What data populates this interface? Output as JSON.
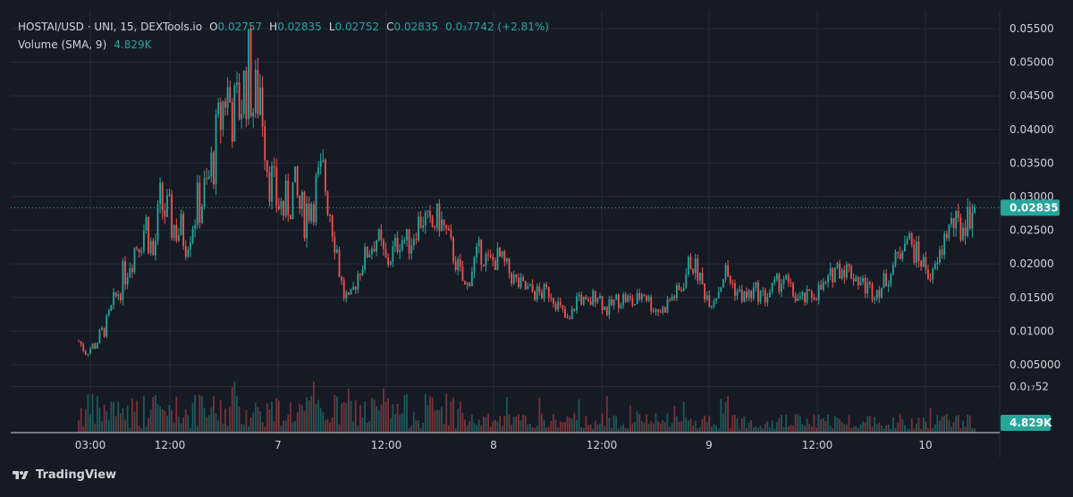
{
  "legend": {
    "symbol": "HOSTAI/USD · UNI, 15, DEXTools.io",
    "open_label": "O",
    "open": "0.02757",
    "high_label": "H",
    "high": "0.02835",
    "low_label": "L",
    "low": "0.02752",
    "close_label": "C",
    "close": "0.02835",
    "change": "0.0₃7742 (+2.81%)",
    "volume_label": "Volume (SMA, 9)",
    "volume_value": "4.829K"
  },
  "footer": {
    "brand": "TradingView"
  },
  "colors": {
    "background": "#161a25",
    "grid": "#262b38",
    "up": "#26a69a",
    "down": "#ef5350",
    "text": "#d1d4dc",
    "price_line": "#26a69a"
  },
  "chart_data": {
    "type": "candlestick",
    "interval": "15",
    "y_axis_labels": [
      "0.05500",
      "0.05000",
      "0.04500",
      "0.04000",
      "0.03500",
      "0.03000",
      "0.02500",
      "0.02000",
      "0.01500",
      "0.01000",
      "0.005000",
      "0.0₁₇52"
    ],
    "y_axis_values": [
      0.055,
      0.05,
      0.045,
      0.04,
      0.035,
      0.03,
      0.025,
      0.02,
      0.015,
      0.01,
      0.005,
      0.00175
    ],
    "x_axis_labels": [
      "03:00",
      "12:00",
      "7",
      "12:00",
      "8",
      "12:00",
      "9",
      "12:00",
      "10"
    ],
    "current_price": "0.02835",
    "current_volume": "4.829K",
    "ylim": [
      0,
      0.0565
    ],
    "price_path": [
      [
        0,
        0.0085
      ],
      [
        6,
        0.007
      ],
      [
        14,
        0.008
      ],
      [
        24,
        0.011
      ],
      [
        34,
        0.016
      ],
      [
        44,
        0.021
      ],
      [
        52,
        0.024
      ],
      [
        58,
        0.026
      ],
      [
        64,
        0.021
      ],
      [
        70,
        0.029
      ],
      [
        80,
        0.026
      ],
      [
        92,
        0.024
      ],
      [
        100,
        0.028
      ],
      [
        110,
        0.031
      ],
      [
        118,
        0.038
      ],
      [
        126,
        0.046
      ],
      [
        134,
        0.042
      ],
      [
        140,
        0.045
      ],
      [
        146,
        0.049
      ],
      [
        150,
        0.043
      ],
      [
        156,
        0.047
      ],
      [
        162,
        0.035
      ],
      [
        168,
        0.03
      ],
      [
        176,
        0.028
      ],
      [
        184,
        0.031
      ],
      [
        192,
        0.027
      ],
      [
        200,
        0.03
      ],
      [
        210,
        0.033
      ],
      [
        216,
        0.028
      ],
      [
        220,
        0.024
      ],
      [
        226,
        0.016
      ],
      [
        232,
        0.014
      ],
      [
        240,
        0.019
      ],
      [
        248,
        0.022
      ],
      [
        256,
        0.024
      ],
      [
        264,
        0.02
      ],
      [
        270,
        0.022
      ],
      [
        276,
        0.024
      ],
      [
        284,
        0.023
      ],
      [
        290,
        0.026
      ],
      [
        296,
        0.027
      ],
      [
        302,
        0.025
      ],
      [
        308,
        0.027
      ],
      [
        314,
        0.025
      ],
      [
        320,
        0.022
      ],
      [
        326,
        0.019
      ],
      [
        332,
        0.016
      ],
      [
        338,
        0.02
      ],
      [
        344,
        0.022
      ],
      [
        352,
        0.02
      ],
      [
        360,
        0.021
      ],
      [
        368,
        0.019
      ],
      [
        376,
        0.017
      ],
      [
        386,
        0.016
      ],
      [
        396,
        0.0155
      ],
      [
        404,
        0.016
      ],
      [
        412,
        0.0135
      ],
      [
        420,
        0.011
      ],
      [
        428,
        0.0155
      ],
      [
        436,
        0.0135
      ],
      [
        444,
        0.016
      ],
      [
        452,
        0.013
      ],
      [
        460,
        0.0145
      ],
      [
        468,
        0.015
      ],
      [
        476,
        0.014
      ],
      [
        484,
        0.016
      ],
      [
        492,
        0.0135
      ],
      [
        500,
        0.013
      ],
      [
        508,
        0.015
      ],
      [
        516,
        0.016
      ],
      [
        524,
        0.0205
      ],
      [
        530,
        0.019
      ],
      [
        536,
        0.016
      ],
      [
        542,
        0.0145
      ],
      [
        548,
        0.016
      ],
      [
        554,
        0.019
      ],
      [
        560,
        0.017
      ],
      [
        566,
        0.0155
      ],
      [
        572,
        0.015
      ],
      [
        580,
        0.016
      ],
      [
        588,
        0.015
      ],
      [
        596,
        0.0165
      ],
      [
        604,
        0.018
      ],
      [
        610,
        0.016
      ],
      [
        618,
        0.0145
      ],
      [
        626,
        0.015
      ],
      [
        634,
        0.016
      ],
      [
        642,
        0.017
      ],
      [
        648,
        0.0195
      ],
      [
        656,
        0.0195
      ],
      [
        664,
        0.0185
      ],
      [
        672,
        0.017
      ],
      [
        680,
        0.016
      ],
      [
        688,
        0.0165
      ],
      [
        696,
        0.019
      ],
      [
        704,
        0.0215
      ],
      [
        708,
        0.025
      ],
      [
        714,
        0.0225
      ],
      [
        720,
        0.021
      ],
      [
        726,
        0.0195
      ],
      [
        732,
        0.018
      ],
      [
        738,
        0.021
      ],
      [
        744,
        0.025
      ],
      [
        750,
        0.026
      ],
      [
        756,
        0.025
      ],
      [
        762,
        0.027
      ],
      [
        768,
        0.02835
      ]
    ],
    "volume_level": 0.0048
  }
}
